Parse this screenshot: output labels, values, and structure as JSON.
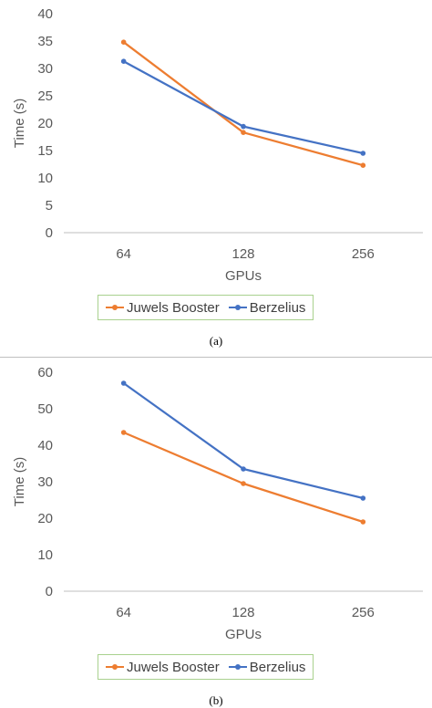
{
  "colors": {
    "juwels": "#ed7d31",
    "berzelius": "#4472c4",
    "grid": "#d9d9d9",
    "axis": "#bfbfbf"
  },
  "chart_data": [
    {
      "type": "line",
      "caption": "(a)",
      "xlabel": "GPUs",
      "ylabel": "Time (s)",
      "categories": [
        "64",
        "128",
        "256"
      ],
      "ylim": [
        0,
        40
      ],
      "yticks": [
        0,
        5,
        10,
        15,
        20,
        25,
        30,
        35,
        40
      ],
      "grid": false,
      "legend": "bottom",
      "series": [
        {
          "name": "Juwels Booster",
          "color": "#ed7d31",
          "values": [
            34.8,
            18.3,
            12.3
          ]
        },
        {
          "name": "Berzelius",
          "color": "#4472c4",
          "values": [
            31.3,
            19.4,
            14.5
          ]
        }
      ]
    },
    {
      "type": "line",
      "caption": "(b)",
      "xlabel": "GPUs",
      "ylabel": "Time (s)",
      "categories": [
        "64",
        "128",
        "256"
      ],
      "ylim": [
        0,
        60
      ],
      "yticks": [
        0,
        10,
        20,
        30,
        40,
        50,
        60
      ],
      "grid": false,
      "legend": "bottom",
      "series": [
        {
          "name": "Juwels Booster",
          "color": "#ed7d31",
          "values": [
            43.5,
            29.5,
            19.0
          ]
        },
        {
          "name": "Berzelius",
          "color": "#4472c4",
          "values": [
            57.0,
            33.5,
            25.5
          ]
        }
      ]
    }
  ]
}
